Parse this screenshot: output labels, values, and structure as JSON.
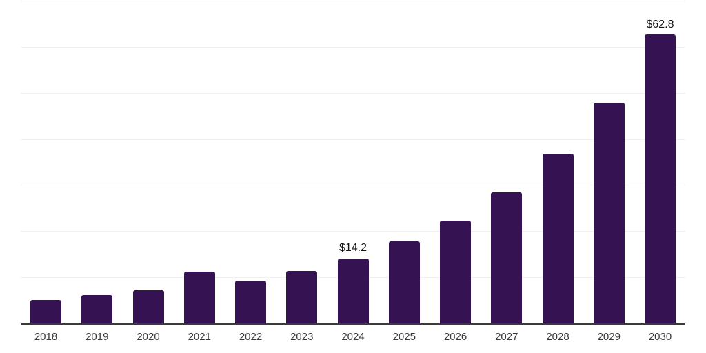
{
  "chart_data": {
    "type": "bar",
    "title": "",
    "xlabel": "",
    "ylabel": "",
    "categories": [
      "2018",
      "2019",
      "2020",
      "2021",
      "2022",
      "2023",
      "2024",
      "2025",
      "2026",
      "2027",
      "2028",
      "2029",
      "2030"
    ],
    "values": [
      5.2,
      6.3,
      7.3,
      11.3,
      9.4,
      11.5,
      14.2,
      17.9,
      22.5,
      28.6,
      37.0,
      48.0,
      62.8
    ],
    "value_labels": {
      "2024": "$14.2",
      "2030": "$62.8"
    },
    "ylim": [
      0,
      70
    ],
    "gridline_step": 10,
    "grid": "horizontal-only",
    "legend": "none",
    "colors": {
      "bar": "#351352",
      "gridline": "#f0f0f0",
      "axis": "#3a3a3a",
      "tick_label": "#3a3a3a",
      "value_label": "#111111",
      "background": "#ffffff"
    }
  }
}
